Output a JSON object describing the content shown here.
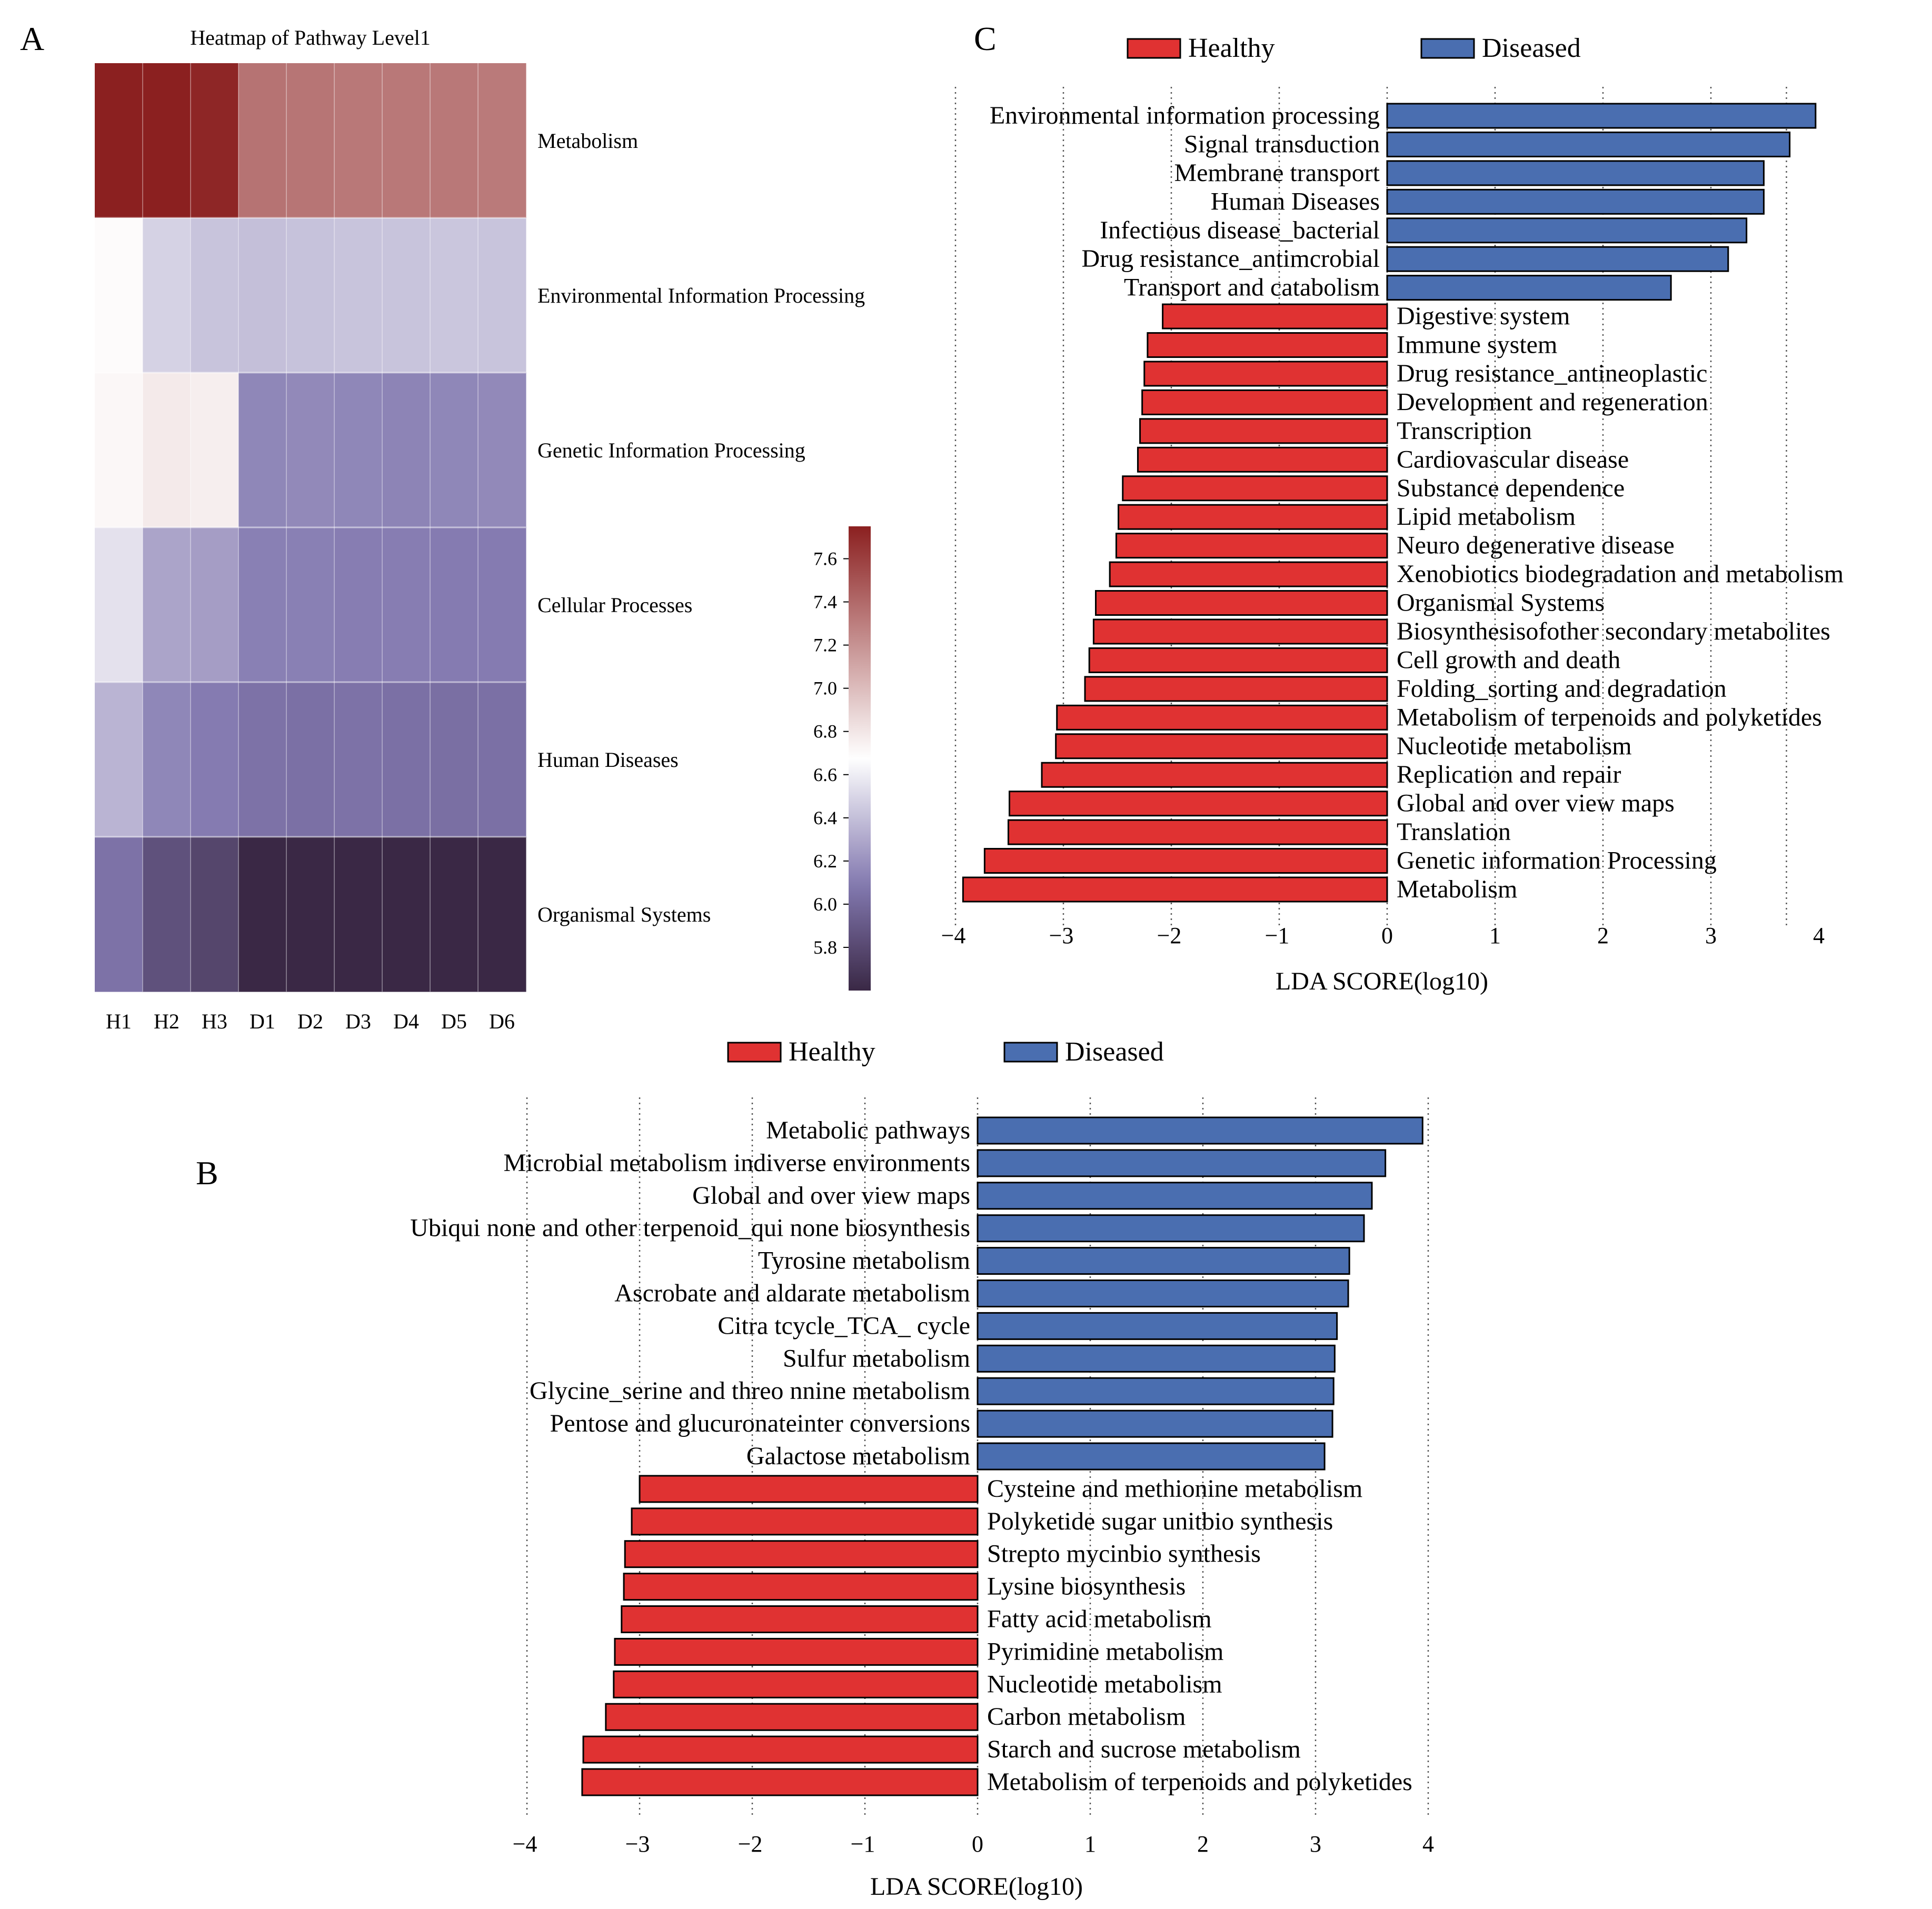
{
  "figure": {
    "labels": {
      "A": "A",
      "B": "B",
      "C": "C"
    }
  },
  "heatmap": {
    "title": "Heatmap of Pathway Level1",
    "columns": [
      "H1",
      "H2",
      "H3",
      "D1",
      "D2",
      "D3",
      "D4",
      "D5",
      "D6"
    ],
    "rows": [
      {
        "name": "Metabolism",
        "values": [
          7.8,
          7.75,
          7.72,
          7.35,
          7.34,
          7.33,
          7.33,
          7.33,
          7.32
        ]
      },
      {
        "name": "Environmental Information Processing",
        "values": [
          6.7,
          6.48,
          6.42,
          6.4,
          6.41,
          6.42,
          6.42,
          6.43,
          6.42
        ]
      },
      {
        "name": "Genetic Information Processing",
        "values": [
          6.72,
          6.78,
          6.76,
          6.15,
          6.16,
          6.15,
          6.14,
          6.15,
          6.16
        ]
      },
      {
        "name": "Cellular Processes",
        "values": [
          6.55,
          6.28,
          6.25,
          6.12,
          6.12,
          6.11,
          6.11,
          6.1,
          6.1
        ]
      },
      {
        "name": "Human Diseases",
        "values": [
          6.35,
          6.15,
          6.1,
          6.05,
          6.04,
          6.05,
          6.04,
          6.03,
          6.04
        ]
      },
      {
        "name": "Organismal Systems",
        "values": [
          6.05,
          5.85,
          5.78,
          5.55,
          5.55,
          5.55,
          5.55,
          5.55,
          5.55
        ]
      }
    ],
    "colorbar": {
      "ticks": [
        "7.6",
        "7.4",
        "7.2",
        "7.0",
        "6.8",
        "6.6",
        "6.4",
        "6.2",
        "6.0",
        "5.8"
      ],
      "tick_values": [
        7.6,
        7.4,
        7.2,
        7.0,
        6.8,
        6.6,
        6.4,
        6.2,
        6.0,
        5.8
      ],
      "range": [
        5.6,
        7.75
      ],
      "colors": {
        "low": "#3a2845",
        "mid": "#ffffff",
        "high": "#8b2020"
      }
    }
  },
  "chart_data": [
    {
      "type": "bar",
      "panel": "C",
      "orientation": "horizontal",
      "legend": [
        "Healthy",
        "Diseased"
      ],
      "colors": {
        "Healthy": "#e03232",
        "Diseased": "#4a6eb0"
      },
      "xlabel": "LDA SCORE(log10)",
      "xlim": [
        -4.5,
        4.1
      ],
      "xticks": [
        {
          "value": -4,
          "label": "−4"
        },
        {
          "value": -3,
          "label": "−3"
        },
        {
          "value": -2,
          "label": "−2"
        },
        {
          "value": -1,
          "label": "−1"
        },
        {
          "value": 0,
          "label": "0"
        },
        {
          "value": 1,
          "label": "1"
        },
        {
          "value": 2,
          "label": "2"
        },
        {
          "value": 3,
          "label": "3"
        },
        {
          "value": 4,
          "label": "4"
        }
      ],
      "gridlines": [
        -4,
        -3,
        -2,
        -1,
        0,
        1,
        2,
        3,
        3.7
      ],
      "bars": [
        {
          "label": "Environmental information processing",
          "value": 3.97,
          "group": "Diseased"
        },
        {
          "label": "Signal transduction",
          "value": 3.73,
          "group": "Diseased"
        },
        {
          "label": "Membrane transport",
          "value": 3.49,
          "group": "Diseased"
        },
        {
          "label": "Human Diseases",
          "value": 3.49,
          "group": "Diseased"
        },
        {
          "label": "Infectious disease_bacterial",
          "value": 3.33,
          "group": "Diseased"
        },
        {
          "label": "Drug resistance_antimcrobial",
          "value": 3.16,
          "group": "Diseased"
        },
        {
          "label": "Transport and catabolism",
          "value": 2.63,
          "group": "Diseased"
        },
        {
          "label": "Digestive system",
          "value": -2.08,
          "group": "Healthy"
        },
        {
          "label": "Immune system",
          "value": -2.22,
          "group": "Healthy"
        },
        {
          "label": "Drug resistance_antineoplastic",
          "value": -2.25,
          "group": "Healthy"
        },
        {
          "label": "Development and regeneration",
          "value": -2.27,
          "group": "Healthy"
        },
        {
          "label": "Transcription",
          "value": -2.29,
          "group": "Healthy"
        },
        {
          "label": "Cardiovascular disease",
          "value": -2.31,
          "group": "Healthy"
        },
        {
          "label": "Substance dependence",
          "value": -2.45,
          "group": "Healthy"
        },
        {
          "label": "Lipid metabolism",
          "value": -2.49,
          "group": "Healthy"
        },
        {
          "label": "Neuro degenerative disease",
          "value": -2.51,
          "group": "Healthy"
        },
        {
          "label": "Xenobiotics biodegradation and metabolism",
          "value": -2.57,
          "group": "Healthy"
        },
        {
          "label": "Organismal Systems",
          "value": -2.7,
          "group": "Healthy"
        },
        {
          "label": "Biosynthesisofother secondary metabolites",
          "value": -2.72,
          "group": "Healthy"
        },
        {
          "label": "Cell growth and death",
          "value": -2.76,
          "group": "Healthy"
        },
        {
          "label": "Folding_sorting and degradation",
          "value": -2.8,
          "group": "Healthy"
        },
        {
          "label": "Metabolism of terpenoids and polyketides",
          "value": -3.06,
          "group": "Healthy"
        },
        {
          "label": "Nucleotide metabolism",
          "value": -3.07,
          "group": "Healthy"
        },
        {
          "label": "Replication and repair",
          "value": -3.2,
          "group": "Healthy"
        },
        {
          "label": "Global and over view maps",
          "value": -3.5,
          "group": "Healthy"
        },
        {
          "label": "Translation",
          "value": -3.51,
          "group": "Healthy"
        },
        {
          "label": "Genetic information Processing",
          "value": -3.73,
          "group": "Healthy"
        },
        {
          "label": "Metabolism",
          "value": -3.93,
          "group": "Healthy"
        }
      ]
    },
    {
      "type": "bar",
      "panel": "B",
      "orientation": "horizontal",
      "legend": [
        "Healthy",
        "Diseased"
      ],
      "colors": {
        "Healthy": "#e03232",
        "Diseased": "#4a6eb0"
      },
      "xlabel": "LDA SCORE(log10)",
      "xlim": [
        -4.0,
        4.1
      ],
      "xticks": [
        {
          "value": -4,
          "label": "−4"
        },
        {
          "value": -3,
          "label": "−3"
        },
        {
          "value": -2,
          "label": "−2"
        },
        {
          "value": -1,
          "label": "−1"
        },
        {
          "value": 0,
          "label": "0"
        },
        {
          "value": 1,
          "label": "1"
        },
        {
          "value": 2,
          "label": "2"
        },
        {
          "value": 3,
          "label": "3"
        },
        {
          "value": 4,
          "label": "4"
        }
      ],
      "gridlines": [
        -4,
        -3,
        -2,
        -1,
        0,
        1,
        2,
        3,
        4
      ],
      "bars": [
        {
          "label": "Metabolic pathways",
          "value": 3.95,
          "group": "Diseased"
        },
        {
          "label": "Microbial metabolism indiverse environments",
          "value": 3.62,
          "group": "Diseased"
        },
        {
          "label": "Global and over view maps",
          "value": 3.5,
          "group": "Diseased"
        },
        {
          "label": "Ubiqui none and other terpenoid_qui none biosynthesis",
          "value": 3.43,
          "group": "Diseased"
        },
        {
          "label": "Tyrosine metabolism",
          "value": 3.3,
          "group": "Diseased"
        },
        {
          "label": "Ascrobate and aldarate metabolism",
          "value": 3.29,
          "group": "Diseased"
        },
        {
          "label": "Citra tcycle_TCA_ cycle",
          "value": 3.19,
          "group": "Diseased"
        },
        {
          "label": "Sulfur metabolism",
          "value": 3.17,
          "group": "Diseased"
        },
        {
          "label": "Glycine_serine and threo nnine metabolism",
          "value": 3.16,
          "group": "Diseased"
        },
        {
          "label": "Pentose and glucuronateinter conversions",
          "value": 3.15,
          "group": "Diseased"
        },
        {
          "label": "Galactose metabolism",
          "value": 3.08,
          "group": "Diseased"
        },
        {
          "label": "Cysteine and methionine metabolism",
          "value": -3.0,
          "group": "Healthy"
        },
        {
          "label": "Polyketide sugar unitbio synthesis",
          "value": -3.07,
          "group": "Healthy"
        },
        {
          "label": "Strepto mycinbio synthesis",
          "value": -3.13,
          "group": "Healthy"
        },
        {
          "label": "Lysine biosynthesis",
          "value": -3.14,
          "group": "Healthy"
        },
        {
          "label": "Fatty acid metabolism",
          "value": -3.16,
          "group": "Healthy"
        },
        {
          "label": "Pyrimidine metabolism",
          "value": -3.22,
          "group": "Healthy"
        },
        {
          "label": "Nucleotide metabolism",
          "value": -3.23,
          "group": "Healthy"
        },
        {
          "label": "Carbon metabolism",
          "value": -3.3,
          "group": "Healthy"
        },
        {
          "label": "Starch and sucrose metabolism",
          "value": -3.5,
          "group": "Healthy"
        },
        {
          "label": "Metabolism of terpenoids and polyketides",
          "value": -3.51,
          "group": "Healthy"
        }
      ]
    }
  ]
}
